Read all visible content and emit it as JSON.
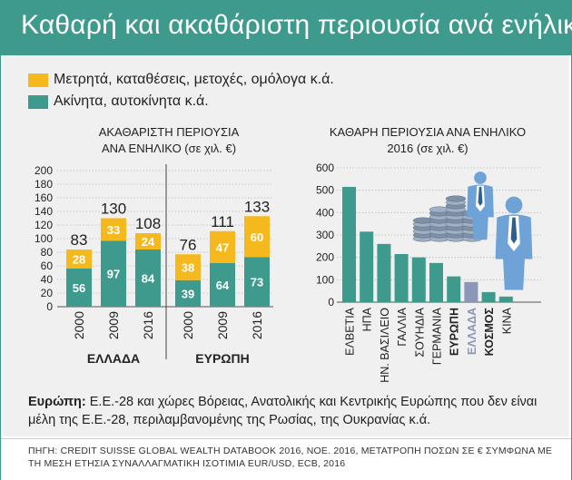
{
  "title": "Καθαρή και ακαθάριστη περιουσία ανά ενήλικο",
  "colors": {
    "teal": "#3e9a8d",
    "yellow": "#f6b91d",
    "highlight": "#8a97b8",
    "panel": "#f0f0f0"
  },
  "legend": [
    {
      "label": "Μετρητά, καταθέσεις, μετοχές, ομόλογα κ.ά.",
      "color": "#f6b91d"
    },
    {
      "label": "Ακίνητα, αυτοκίνητα κ.ά.",
      "color": "#3e9a8d"
    }
  ],
  "chart_data": [
    {
      "type": "bar",
      "stacked": true,
      "title": "ΑΚΑΘΑΡΙΣΤΗ ΠΕΡΙΟΥΣΙΑ",
      "subtitle": "ΑΝΑ ΕΝΗΛΙΚΟ (σε χιλ. €)",
      "ylim": [
        0,
        200
      ],
      "yticks": [
        0,
        20,
        40,
        60,
        80,
        100,
        120,
        140,
        160,
        180,
        200
      ],
      "groups": [
        {
          "label": "ΕΛΛΑΔΑ",
          "categories": [
            "2000",
            "2009",
            "2016"
          ],
          "bottom": [
            56,
            97,
            84
          ],
          "top": [
            28,
            33,
            24
          ],
          "totals": [
            83,
            130,
            108
          ]
        },
        {
          "label": "ΕΥΡΩΠΗ",
          "categories": [
            "2000",
            "2009",
            "2016"
          ],
          "bottom": [
            39,
            64,
            73
          ],
          "top": [
            38,
            47,
            60
          ],
          "totals": [
            76,
            111,
            133
          ]
        }
      ]
    },
    {
      "type": "bar",
      "title": "ΚΑΘΑΡΗ ΠΕΡΙΟΥΣΙΑ ΑΝΑ ΕΝΗΛΙΚΟ",
      "subtitle": "2016 (σε χιλ. €)",
      "ylim": [
        0,
        600
      ],
      "yticks": [
        0,
        100,
        200,
        300,
        400,
        500,
        600
      ],
      "categories": [
        "ΕΛΒΕΤΙΑ",
        "ΗΠΑ",
        "ΗΝ. ΒΑΣΙΛΕΙΟ",
        "ΓΑΛΛΙΑ",
        "ΣΟΥΗΔΙΑ",
        "ΓΕΡΜΑΝΙΑ",
        "ΕΥΡΩΠΗ",
        "ΕΛΛΑΔΑ",
        "ΚΟΣΜΟΣ",
        "ΚΙΝΑ"
      ],
      "values": [
        515,
        315,
        260,
        215,
        200,
        175,
        115,
        90,
        45,
        25
      ],
      "bold": [
        false,
        false,
        false,
        false,
        false,
        false,
        true,
        true,
        true,
        false
      ],
      "highlight": [
        false,
        false,
        false,
        false,
        false,
        false,
        false,
        true,
        false,
        false
      ]
    }
  ],
  "note": {
    "bold": "Ευρώπη:",
    "text": " Ε.Ε.-28 και χώρες Βόρειας, Ανατολικής και Κεντρικής Ευρώπης που δεν είναι μέλη της Ε.Ε.-28, περιλαμβανομένης της Ρωσίας, της Ουκρανίας κ.ά."
  },
  "source": "ΠΗΓΗ: CREDIT SUISSE GLOBAL WEALTH DATABOOK 2016, ΝΟΕ. 2016, ΜΕΤΑΤΡΟΠΗ ΠΟΣΩΝ ΣΕ € ΣΥΜΦΩΝΑ ΜΕ ΤΗ ΜΕΣΗ ΕΤΗΣΙΑ ΣΥΝΑΛΛΑΓΜΑΤΙΚΗ ΙΣΟΤΙΜΙΑ EUR/USD, ECB, 2016"
}
